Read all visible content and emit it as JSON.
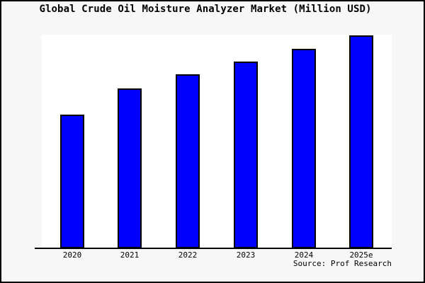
{
  "chart_data": {
    "type": "bar",
    "title": "Global Crude Oil Moisture Analyzer Market (Million USD)",
    "categories": [
      "2020",
      "2021",
      "2022",
      "2023",
      "2024",
      "2025e"
    ],
    "values": [
      0.628,
      0.751,
      0.817,
      0.877,
      0.937,
      1.0
    ],
    "values_note": "no y-axis scale shown in chart; values are bar heights relative to tallest bar (2025e = 1.0)",
    "xlabel": "",
    "ylabel": "",
    "ylim": [
      0,
      1
    ],
    "grid": false,
    "legend_position": "none",
    "bar_color": "#0000ff",
    "bar_border_color": "#000000",
    "plot_background": "#ffffff",
    "page_background": "#f7f7f7",
    "axis_color": "#000000",
    "title_color": "#000000"
  },
  "footer": {
    "source": "Source: Prof Research"
  }
}
